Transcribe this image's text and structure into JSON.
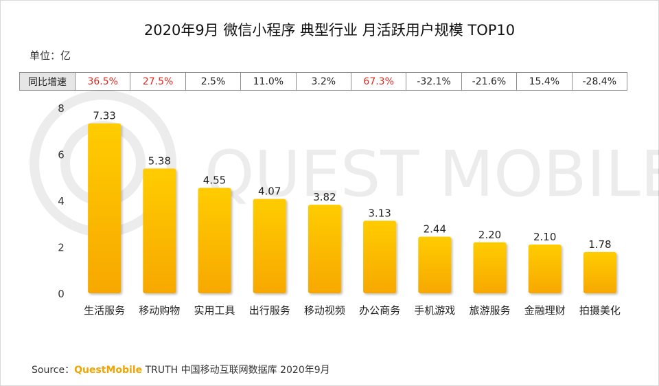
{
  "title": "2020年9月 微信小程序 典型行业 月活跃用户规模 TOP10",
  "unit_label": "单位：亿",
  "watermark": "QUEST MOBILE",
  "yoy": {
    "header": "同比增速",
    "cells": [
      {
        "value": "36.5%",
        "highlight": true
      },
      {
        "value": "27.5%",
        "highlight": true
      },
      {
        "value": "2.5%",
        "highlight": false
      },
      {
        "value": "11.0%",
        "highlight": false
      },
      {
        "value": "3.2%",
        "highlight": false
      },
      {
        "value": "67.3%",
        "highlight": true
      },
      {
        "value": "-32.1%",
        "highlight": false
      },
      {
        "value": "-21.6%",
        "highlight": false
      },
      {
        "value": "15.4%",
        "highlight": false
      },
      {
        "value": "-28.4%",
        "highlight": false
      }
    ]
  },
  "chart_data": {
    "type": "bar",
    "categories": [
      "生活服务",
      "移动购物",
      "实用工具",
      "出行服务",
      "移动视频",
      "办公商务",
      "手机游戏",
      "旅游服务",
      "金融理财",
      "拍摄美化"
    ],
    "values": [
      7.33,
      5.38,
      4.55,
      4.07,
      3.82,
      3.13,
      2.44,
      2.2,
      2.1,
      1.78
    ],
    "value_labels": [
      "7.33",
      "5.38",
      "4.55",
      "4.07",
      "3.82",
      "3.13",
      "2.44",
      "2.20",
      "2.10",
      "1.78"
    ],
    "ylim": [
      0,
      8
    ],
    "yticks": [
      "0",
      "2",
      "4",
      "6",
      "8"
    ],
    "ytick_values": [
      0,
      2,
      4,
      6,
      8
    ],
    "xlabel": "",
    "ylabel": "",
    "grid": false,
    "legend": "none"
  },
  "source": {
    "prefix": "Source：",
    "brand": "QuestMobile",
    "rest": " TRUTH 中国移动互联网数据库 2020年9月"
  },
  "colors": {
    "bar_top": "#ffcc00",
    "bar_bottom": "#f7a800",
    "highlight_text": "#e0281e",
    "brand": "#f2a400"
  }
}
